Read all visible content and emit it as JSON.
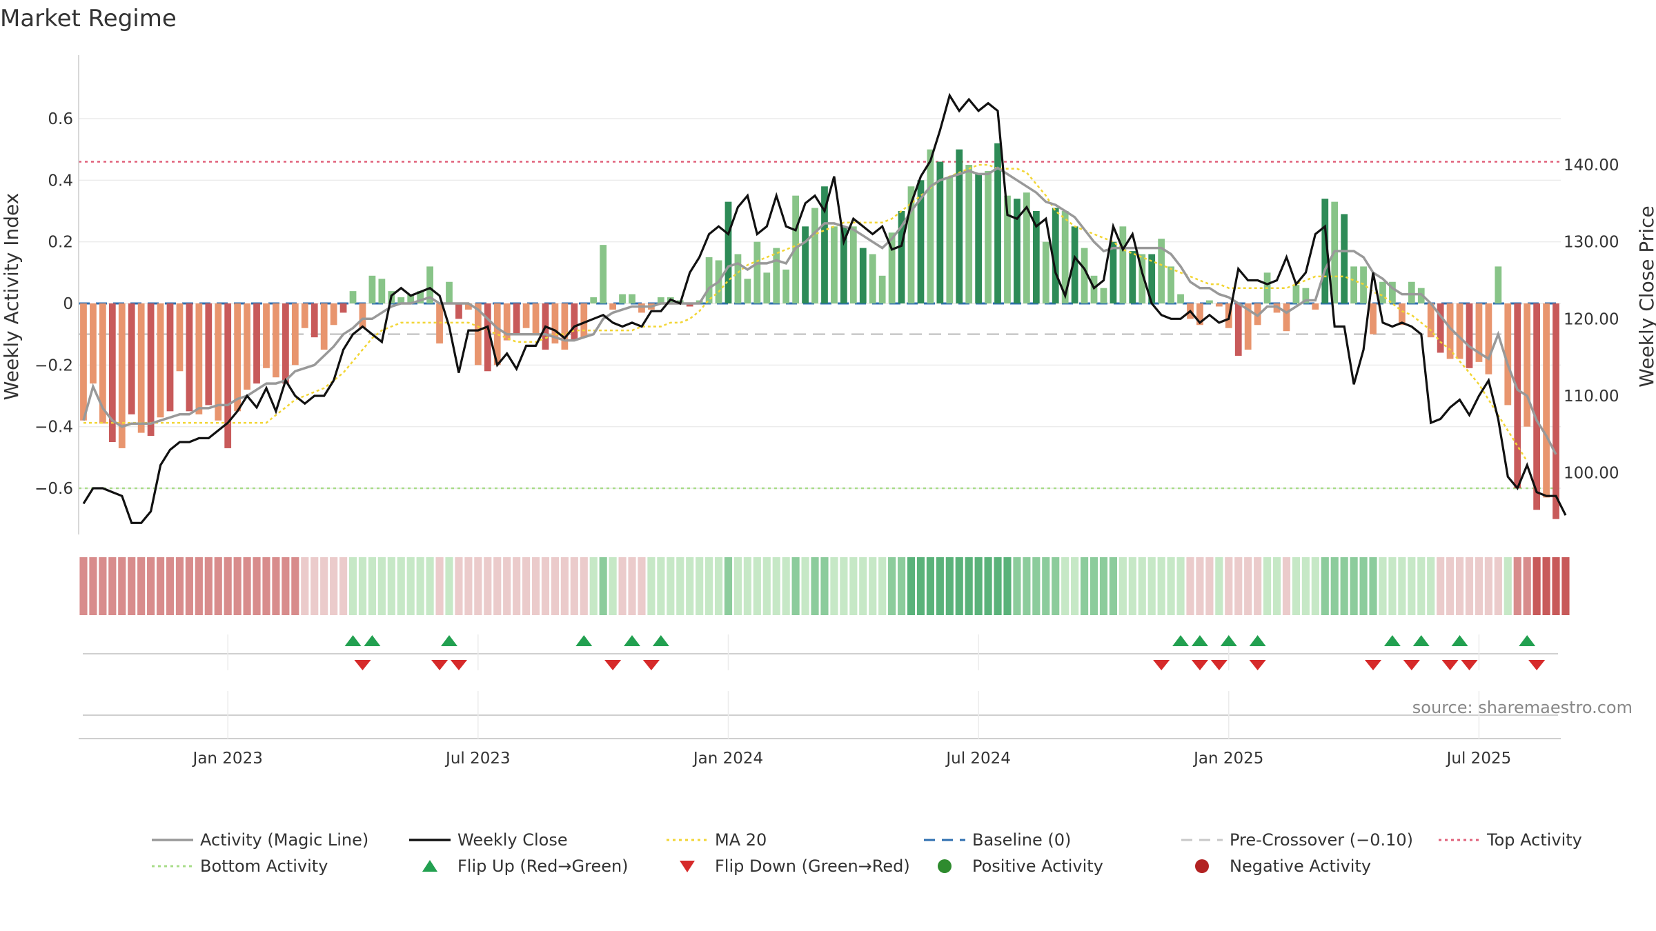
{
  "chart_data": {
    "type": "bar",
    "title": "Market Regime",
    "ylabel": "Weekly Activity Index",
    "y2label": "Weekly Close Price",
    "source": "source: sharemaestro.com",
    "ylim": [
      -0.75,
      0.75
    ],
    "y2lim": [
      92,
      152
    ],
    "yticks": [
      {
        "v": 0.6,
        "label": "0.6"
      },
      {
        "v": 0.4,
        "label": "0.4"
      },
      {
        "v": 0.2,
        "label": "0.2"
      },
      {
        "v": 0,
        "label": "0"
      },
      {
        "v": -0.2,
        "label": "−0.2"
      },
      {
        "v": -0.4,
        "label": "−0.4"
      },
      {
        "v": -0.6,
        "label": "−0.6"
      }
    ],
    "y2ticks": [
      {
        "v": 140,
        "label": "140.00"
      },
      {
        "v": 130,
        "label": "130.00"
      },
      {
        "v": 120,
        "label": "120.00"
      },
      {
        "v": 110,
        "label": "110.00"
      },
      {
        "v": 100,
        "label": "100.00"
      }
    ],
    "xticks": [
      {
        "week": 15,
        "label": "Jan 2023"
      },
      {
        "week": 41,
        "label": "Jul 2023"
      },
      {
        "week": 67,
        "label": "Jan 2024"
      },
      {
        "week": 93,
        "label": "Jul 2024"
      },
      {
        "week": 119,
        "label": "Jan 2025"
      },
      {
        "week": 145,
        "label": "Jul 2025"
      }
    ],
    "reference_lines": {
      "top_activity": 0.46,
      "bottom_activity": -0.6,
      "pre_crossover": -0.1,
      "baseline": 0
    },
    "activity": [
      -0.38,
      -0.26,
      -0.39,
      -0.45,
      -0.47,
      -0.36,
      -0.42,
      -0.43,
      -0.37,
      -0.35,
      -0.22,
      -0.35,
      -0.36,
      -0.33,
      -0.38,
      -0.47,
      -0.35,
      -0.28,
      -0.26,
      -0.21,
      -0.24,
      -0.26,
      -0.2,
      -0.08,
      -0.11,
      -0.15,
      -0.07,
      -0.03,
      0.04,
      -0.08,
      0.09,
      0.08,
      0.04,
      0.02,
      0.03,
      0.04,
      0.12,
      -0.13,
      0.07,
      -0.05,
      -0.02,
      -0.2,
      -0.22,
      -0.2,
      -0.12,
      -0.1,
      -0.08,
      -0.1,
      -0.15,
      -0.13,
      -0.15,
      -0.12,
      -0.11,
      0.02,
      0.19,
      -0.02,
      0.03,
      0.03,
      -0.03,
      -0.02,
      0.02,
      0.02,
      0.01,
      -0.01,
      0.01,
      0.15,
      0.14,
      0.33,
      0.16,
      0.08,
      0.2,
      0.1,
      0.18,
      0.11,
      0.35,
      0.25,
      0.31,
      0.38,
      0.25,
      0.25,
      0.25,
      0.18,
      0.16,
      0.09,
      0.23,
      0.3,
      0.38,
      0.4,
      0.5,
      0.46,
      0.41,
      0.5,
      0.45,
      0.42,
      0.43,
      0.52,
      0.35,
      0.34,
      0.36,
      0.3,
      0.2,
      0.31,
      0.3,
      0.25,
      0.18,
      0.09,
      0.05,
      0.2,
      0.25,
      0.17,
      0.16,
      0.16,
      0.21,
      0.12,
      0.03,
      -0.05,
      -0.07,
      0.01,
      -0.01,
      -0.08,
      -0.17,
      -0.15,
      -0.07,
      0.1,
      -0.03,
      -0.09,
      0.06,
      0.05,
      -0.02,
      0.34,
      0.33,
      0.29,
      0.12,
      0.12,
      -0.1,
      0.07,
      0.07,
      -0.07,
      0.07,
      0.05,
      -0.11,
      -0.16,
      -0.18,
      -0.18,
      -0.21,
      -0.19,
      -0.23,
      0.12,
      -0.33,
      -0.6,
      -0.4,
      -0.67,
      -0.63,
      -0.7
    ],
    "activity_colors_legend": {
      "strong_positive": "#2e8b57",
      "positive": "#88c488",
      "negative": "#e8956e",
      "strong_negative": "#c85a5a"
    },
    "magic_line": [
      -0.38,
      -0.27,
      -0.34,
      -0.38,
      -0.4,
      -0.39,
      -0.39,
      -0.39,
      -0.38,
      -0.37,
      -0.36,
      -0.36,
      -0.34,
      -0.34,
      -0.33,
      -0.33,
      -0.31,
      -0.3,
      -0.28,
      -0.26,
      -0.26,
      -0.25,
      -0.22,
      -0.21,
      -0.2,
      -0.17,
      -0.14,
      -0.1,
      -0.08,
      -0.05,
      -0.05,
      -0.03,
      -0.01,
      0,
      0,
      0.01,
      0.02,
      0,
      0,
      0,
      0,
      -0.02,
      -0.05,
      -0.08,
      -0.1,
      -0.1,
      -0.1,
      -0.1,
      -0.1,
      -0.11,
      -0.12,
      -0.12,
      -0.11,
      -0.1,
      -0.05,
      -0.03,
      -0.02,
      -0.01,
      -0.01,
      -0.01,
      0,
      0,
      0,
      0,
      0,
      0.05,
      0.07,
      0.12,
      0.13,
      0.11,
      0.13,
      0.13,
      0.14,
      0.13,
      0.18,
      0.2,
      0.23,
      0.26,
      0.26,
      0.25,
      0.24,
      0.22,
      0.2,
      0.18,
      0.21,
      0.25,
      0.3,
      0.34,
      0.38,
      0.4,
      0.41,
      0.42,
      0.43,
      0.42,
      0.42,
      0.44,
      0.42,
      0.4,
      0.38,
      0.36,
      0.33,
      0.32,
      0.3,
      0.28,
      0.24,
      0.2,
      0.17,
      0.18,
      0.18,
      0.18,
      0.18,
      0.18,
      0.18,
      0.16,
      0.12,
      0.07,
      0.05,
      0.05,
      0.03,
      0.02,
      0,
      -0.02,
      -0.04,
      -0.01,
      -0.01,
      -0.03,
      -0.01,
      0.01,
      0.01,
      0.11,
      0.17,
      0.17,
      0.17,
      0.15,
      0.1,
      0.08,
      0.05,
      0.03,
      0.03,
      0.03,
      0,
      -0.04,
      -0.08,
      -0.11,
      -0.14,
      -0.16,
      -0.18,
      -0.1,
      -0.2,
      -0.28,
      -0.3,
      -0.38,
      -0.43,
      -0.49
    ],
    "weekly_close": [
      96,
      98,
      98,
      97.5,
      97,
      93.5,
      93.5,
      95,
      101,
      103,
      104,
      104,
      104.5,
      104.5,
      105.5,
      106.5,
      108,
      110,
      108.5,
      111,
      108,
      112,
      110,
      109,
      110,
      110,
      112,
      116,
      118,
      119,
      118,
      117,
      123,
      124,
      123,
      123.5,
      124,
      123,
      119,
      113,
      118.5,
      118.5,
      119,
      114,
      115.5,
      113.5,
      116.5,
      116.5,
      119,
      118.5,
      117.5,
      119,
      119.5,
      120,
      120.5,
      119.5,
      119,
      119.5,
      119,
      121,
      121,
      122.5,
      122,
      126,
      128,
      131,
      132,
      131,
      134.5,
      136,
      131,
      132,
      136,
      132,
      131.5,
      135,
      136,
      134,
      138.5,
      130,
      133,
      132,
      131,
      132,
      129,
      129.5,
      135,
      138.5,
      140.5,
      144.5,
      149,
      147,
      148.5,
      147,
      148,
      147,
      133.5,
      133,
      134.5,
      132,
      133,
      126,
      123,
      128,
      126.5,
      124,
      125,
      132,
      129,
      131,
      126,
      122,
      120.5,
      120,
      120,
      121,
      119.5,
      120.5,
      119.5,
      120,
      126.5,
      125,
      125,
      124.5,
      125,
      128,
      124.5,
      126,
      131,
      132,
      119,
      119,
      111.5,
      116,
      126,
      119.5,
      119,
      119.5,
      119,
      118,
      106.5,
      107,
      108.5,
      109.5,
      107.5,
      110,
      112,
      107,
      99.5,
      98,
      101,
      97.5,
      97,
      97,
      94.5
    ],
    "ma20": [
      106.5,
      106.5,
      106.5,
      106.5,
      106.5,
      106.5,
      106.5,
      106.5,
      106.5,
      106.5,
      106.5,
      106.5,
      106.5,
      106.5,
      106.5,
      106.5,
      106.5,
      106.5,
      106.5,
      106.5,
      107.5,
      108.5,
      109.5,
      110,
      110.5,
      111,
      112,
      113,
      114.5,
      116,
      117.5,
      118.5,
      119,
      119.5,
      119.5,
      119.5,
      119.5,
      119.5,
      119.5,
      119.5,
      119.5,
      119,
      118.5,
      118,
      117.5,
      117,
      117,
      117,
      117.5,
      118,
      118,
      118.5,
      118.5,
      118.5,
      118.5,
      118.5,
      118.5,
      118.5,
      119,
      119,
      119,
      119.5,
      119.5,
      120,
      121,
      122.5,
      123.5,
      125,
      126,
      127,
      127.5,
      128,
      128.5,
      129,
      129.5,
      130,
      131,
      131.5,
      132,
      132.5,
      132.5,
      132.5,
      132.5,
      132.5,
      133,
      134,
      135,
      136,
      137,
      138,
      138.5,
      139,
      139.5,
      140,
      140,
      139.5,
      139.5,
      139.5,
      139,
      137.5,
      136,
      134,
      133,
      132,
      131.5,
      131,
      130.5,
      130,
      129,
      128.5,
      128,
      127.5,
      127,
      126.5,
      126,
      125.5,
      125,
      124.5,
      124.5,
      124,
      124,
      124,
      124,
      124,
      124,
      124,
      124.5,
      125,
      125.5,
      125.5,
      125.5,
      125.5,
      125,
      124.5,
      123.5,
      123,
      122,
      121,
      120.5,
      119.5,
      118.5,
      117,
      116,
      114.5,
      113,
      111.5,
      109.5,
      107.5,
      105.5,
      103.5,
      101.5
    ],
    "regime_strip": [
      -2,
      -2,
      -2,
      -2,
      -2,
      -2,
      -2,
      -2,
      -2,
      -2,
      -2,
      -2,
      -2,
      -2,
      -2,
      -2,
      -2,
      -2,
      -2,
      -2,
      -2,
      -2,
      -2,
      -1,
      -1,
      -1,
      -1,
      -1,
      1,
      1,
      1,
      1,
      1,
      1,
      1,
      1,
      1,
      -1,
      1,
      -1,
      -1,
      -1,
      -1,
      -1,
      -1,
      -1,
      -1,
      -1,
      -1,
      -1,
      -1,
      -1,
      -1,
      1,
      2,
      1,
      -1,
      -1,
      -1,
      1,
      1,
      1,
      1,
      1,
      1,
      1,
      1,
      2,
      1,
      1,
      1,
      1,
      1,
      1,
      2,
      1,
      2,
      2,
      1,
      1,
      1,
      1,
      1,
      1,
      2,
      2,
      3,
      3,
      3,
      3,
      3,
      3,
      3,
      3,
      3,
      3,
      3,
      2,
      2,
      2,
      2,
      2,
      1,
      1,
      2,
      2,
      2,
      2,
      1,
      1,
      1,
      1,
      1,
      1,
      1,
      -1,
      -1,
      -1,
      1,
      -1,
      -1,
      -1,
      -1,
      1,
      1,
      -1,
      1,
      1,
      1,
      2,
      2,
      2,
      2,
      2,
      2,
      1,
      1,
      1,
      1,
      1,
      1,
      -1,
      -1,
      -1,
      -1,
      -1,
      -1,
      -1,
      1,
      -2,
      -2,
      -3,
      -3,
      -3,
      -3
    ],
    "flip_up_weeks": [
      28,
      30,
      38,
      52,
      57,
      60,
      114,
      116,
      119,
      122,
      136,
      139,
      143,
      150
    ],
    "flip_down_weeks": [
      29,
      37,
      39,
      55,
      59,
      112,
      116,
      118,
      122,
      134,
      138,
      142,
      144,
      151
    ],
    "legend": [
      {
        "label": "Activity (Magic Line)",
        "style": "line",
        "color": "#999999"
      },
      {
        "label": "Weekly Close",
        "style": "line",
        "color": "#111111"
      },
      {
        "label": "MA 20",
        "style": "dotted",
        "color": "#f2d534"
      },
      {
        "label": "Baseline (0)",
        "style": "dashed",
        "color": "#2f6fb0"
      },
      {
        "label": "Pre-Crossover (−0.10)",
        "style": "dashed",
        "color": "#c8c8c8"
      },
      {
        "label": "Top Activity",
        "style": "dotted",
        "color": "#e0607a"
      },
      {
        "label": "Bottom Activity",
        "style": "dotted",
        "color": "#a8dc88"
      },
      {
        "label": "Flip Up (Red→Green)",
        "style": "tri-up",
        "color": "#22a050"
      },
      {
        "label": "Flip Down (Green→Red)",
        "style": "tri-down",
        "color": "#d62a2a"
      },
      {
        "label": "Positive Activity",
        "style": "dot",
        "color": "#2e8b2e"
      },
      {
        "label": "Negative Activity",
        "style": "dot",
        "color": "#b22222"
      }
    ]
  }
}
